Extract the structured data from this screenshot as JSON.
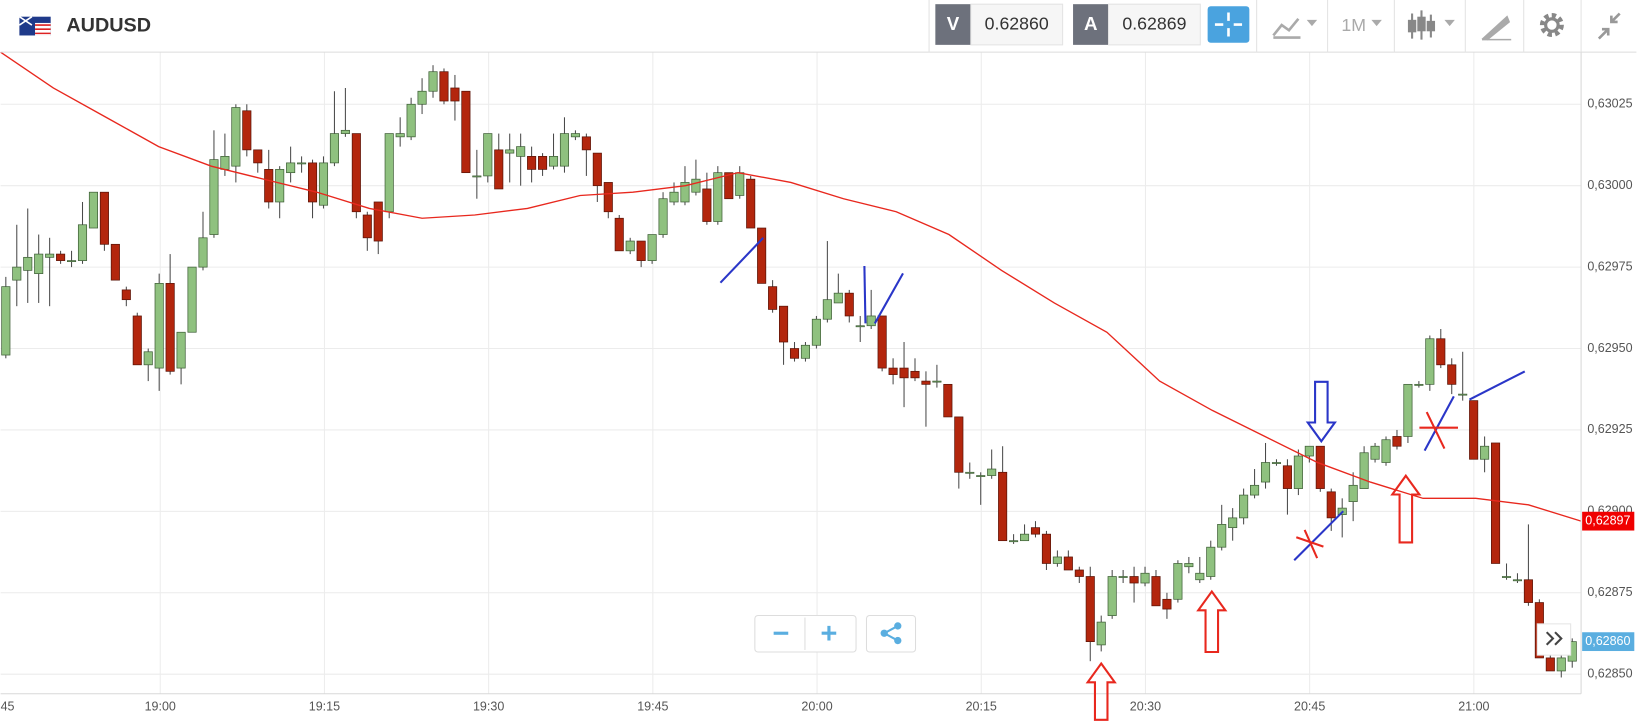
{
  "header": {
    "symbol": "AUDUSD",
    "bid_label": "V",
    "bid": "0.62860",
    "ask_label": "A",
    "ask": "0.62869",
    "timeframe": "1M"
  },
  "chart_data": {
    "type": "candlestick",
    "up_color": "#8fc17f",
    "down_color": "#b3260d",
    "grid": true,
    "ylim": [
      0.62844,
      0.63041
    ],
    "yticks": [
      {
        "value": 0.6285,
        "label": "0,62850"
      },
      {
        "value": 0.62875,
        "label": "0,62875"
      },
      {
        "value": 0.629,
        "label": "0,62900"
      },
      {
        "value": 0.62925,
        "label": "0,62925"
      },
      {
        "value": 0.6295,
        "label": "0,62950"
      },
      {
        "value": 0.62975,
        "label": "0,62975"
      },
      {
        "value": 0.63,
        "label": "0,63000"
      },
      {
        "value": 0.63025,
        "label": "0,63025"
      }
    ],
    "xticks": [
      "45",
      "19:00",
      "19:15",
      "19:30",
      "19:45",
      "20:00",
      "20:15",
      "20:30",
      "20:45",
      "21:00"
    ],
    "open": [
      0.62948,
      0.62971,
      0.62974,
      0.62973,
      0.62978,
      0.62979,
      0.62977,
      0.62977,
      0.62987,
      0.62998,
      0.62982,
      0.62968,
      0.6296,
      0.62945,
      0.62944,
      0.6297,
      0.62944,
      0.62955,
      0.62975,
      0.62985,
      0.63005,
      0.63006,
      0.63023,
      0.63011,
      0.63005,
      0.62995,
      0.63004,
      0.63007,
      0.63007,
      0.62994,
      0.63007,
      0.63016,
      0.63016,
      0.62991,
      0.62995,
      0.62992,
      0.63015,
      0.63015,
      0.63025,
      0.63029,
      0.63035,
      0.6303,
      0.63029,
      0.63003,
      0.63003,
      0.63011,
      0.6301,
      0.63009,
      0.63009,
      0.63009,
      0.63006,
      0.63006,
      0.63015,
      0.63015,
      0.6301,
      0.63001,
      0.6299,
      0.6298,
      0.62983,
      0.62977,
      0.62985,
      0.62995,
      0.62995,
      0.62998,
      0.62999,
      0.62989,
      0.63004,
      0.62997,
      0.63002,
      0.62987,
      0.62969,
      0.62963,
      0.6295,
      0.62947,
      0.62951,
      0.62959,
      0.62964,
      0.62967,
      0.62957,
      0.62957,
      0.6296,
      0.62944,
      0.62944,
      0.62943,
      0.6294,
      0.6294,
      0.62939,
      0.62929,
      0.62912,
      0.62911,
      0.62911,
      0.62912,
      0.62891,
      0.62891,
      0.62895,
      0.62893,
      0.62884,
      0.62886,
      0.62882,
      0.6288,
      0.62859,
      0.62868,
      0.6288,
      0.6288,
      0.62878,
      0.6288,
      0.62873,
      0.62873,
      0.62883,
      0.62879,
      0.6288,
      0.62889,
      0.62895,
      0.62898,
      0.62905,
      0.62909,
      0.62915,
      0.62914,
      0.62907,
      0.62917,
      0.6292,
      0.62906,
      0.62899,
      0.62903,
      0.62907,
      0.62916,
      0.62915,
      0.62923,
      0.62923,
      0.62939,
      0.62939,
      0.62953,
      0.62945,
      0.62936,
      0.62934,
      0.62916,
      0.62921,
      0.6288,
      0.62879,
      0.62879,
      0.62872,
      0.62855,
      0.62851,
      0.62854
    ],
    "high": [
      0.62972,
      0.62988,
      0.62993,
      0.62985,
      0.62984,
      0.6298,
      0.6298,
      0.62995,
      0.62998,
      0.62998,
      0.62982,
      0.62969,
      0.62961,
      0.6295,
      0.62973,
      0.62979,
      0.62955,
      0.62975,
      0.62992,
      0.63017,
      0.63016,
      0.63025,
      0.63025,
      0.63011,
      0.63011,
      0.63006,
      0.63012,
      0.63009,
      0.63008,
      0.63009,
      0.63029,
      0.6303,
      0.63016,
      0.62992,
      0.62995,
      0.63016,
      0.63021,
      0.63027,
      0.63033,
      0.63037,
      0.63036,
      0.63034,
      0.63029,
      0.63011,
      0.63016,
      0.63016,
      0.63016,
      0.63016,
      0.63012,
      0.6301,
      0.63016,
      0.63021,
      0.63017,
      0.63016,
      0.6301,
      0.63001,
      0.62991,
      0.62984,
      0.62983,
      0.62985,
      0.62998,
      0.63001,
      0.63006,
      0.63008,
      0.63004,
      0.63006,
      0.63004,
      0.63006,
      0.63003,
      0.62987,
      0.62971,
      0.62963,
      0.62952,
      0.62952,
      0.6296,
      0.62983,
      0.62973,
      0.62968,
      0.6296,
      0.62968,
      0.6296,
      0.62947,
      0.62952,
      0.62947,
      0.62943,
      0.62945,
      0.62939,
      0.62929,
      0.62915,
      0.62912,
      0.62919,
      0.6292,
      0.62893,
      0.62896,
      0.62897,
      0.62894,
      0.62888,
      0.62888,
      0.62883,
      0.62883,
      0.62868,
      0.62882,
      0.62882,
      0.62883,
      0.62883,
      0.62882,
      0.62875,
      0.62885,
      0.62886,
      0.62886,
      0.62891,
      0.62902,
      0.62901,
      0.62907,
      0.62913,
      0.62921,
      0.62916,
      0.62916,
      0.62919,
      0.6292,
      0.6292,
      0.62907,
      0.62904,
      0.62912,
      0.6292,
      0.62921,
      0.62923,
      0.62925,
      0.62939,
      0.6294,
      0.62954,
      0.62956,
      0.62947,
      0.62949,
      0.62934,
      0.62923,
      0.62921,
      0.62884,
      0.62881,
      0.62896,
      0.62873,
      0.62857,
      0.62856,
      0.62861
    ],
    "low": [
      0.62947,
      0.62963,
      0.62964,
      0.62964,
      0.62963,
      0.62976,
      0.62975,
      0.62976,
      0.62987,
      0.6298,
      0.62971,
      0.62963,
      0.62945,
      0.6294,
      0.62937,
      0.62942,
      0.62939,
      0.62955,
      0.62974,
      0.62984,
      0.63003,
      0.63001,
      0.63009,
      0.63004,
      0.62993,
      0.6299,
      0.63001,
      0.63004,
      0.6299,
      0.62993,
      0.63006,
      0.63015,
      0.6299,
      0.6298,
      0.62979,
      0.6299,
      0.63012,
      0.63014,
      0.63022,
      0.63027,
      0.63025,
      0.6302,
      0.63004,
      0.62996,
      0.63001,
      0.62999,
      0.63001,
      0.63,
      0.63001,
      0.63003,
      0.63005,
      0.63004,
      0.63014,
      0.63003,
      0.62995,
      0.6299,
      0.6298,
      0.62979,
      0.62975,
      0.62976,
      0.62984,
      0.62994,
      0.62994,
      0.62997,
      0.62988,
      0.62988,
      0.62996,
      0.62996,
      0.62987,
      0.6297,
      0.62961,
      0.62945,
      0.62946,
      0.62946,
      0.6295,
      0.62958,
      0.62964,
      0.62958,
      0.62952,
      0.62956,
      0.62943,
      0.62939,
      0.62932,
      0.6294,
      0.62926,
      0.62938,
      0.62929,
      0.62907,
      0.6291,
      0.62902,
      0.6291,
      0.62891,
      0.6289,
      0.62891,
      0.62892,
      0.62882,
      0.62883,
      0.62882,
      0.62878,
      0.62854,
      0.62857,
      0.62867,
      0.62878,
      0.62872,
      0.62877,
      0.62872,
      0.62867,
      0.62872,
      0.62881,
      0.62878,
      0.62879,
      0.62888,
      0.62891,
      0.62896,
      0.62904,
      0.62907,
      0.62914,
      0.62899,
      0.62905,
      0.62915,
      0.62906,
      0.62894,
      0.62892,
      0.62897,
      0.62907,
      0.62915,
      0.62914,
      0.62919,
      0.62921,
      0.62938,
      0.62937,
      0.62944,
      0.62936,
      0.62934,
      0.62916,
      0.62912,
      0.62884,
      0.62879,
      0.62878,
      0.62871,
      0.62855,
      0.62851,
      0.62849,
      0.62852
    ],
    "close": [
      0.62969,
      0.62975,
      0.62978,
      0.62979,
      0.62979,
      0.62977,
      0.62977,
      0.62988,
      0.62998,
      0.62982,
      0.62971,
      0.62965,
      0.62945,
      0.62949,
      0.6297,
      0.62943,
      0.62955,
      0.62975,
      0.62984,
      0.63008,
      0.63009,
      0.63024,
      0.63011,
      0.63007,
      0.62995,
      0.63005,
      0.63007,
      0.63007,
      0.62995,
      0.63007,
      0.63016,
      0.63017,
      0.62992,
      0.62984,
      0.62983,
      0.63016,
      0.63016,
      0.63025,
      0.63029,
      0.63035,
      0.63026,
      0.63026,
      0.63004,
      0.63003,
      0.63016,
      0.62999,
      0.63011,
      0.63012,
      0.63005,
      0.63005,
      0.63009,
      0.63016,
      0.63016,
      0.63011,
      0.63,
      0.62992,
      0.6298,
      0.62983,
      0.62977,
      0.62985,
      0.62996,
      0.62998,
      0.63001,
      0.63002,
      0.62989,
      0.63004,
      0.62996,
      0.63004,
      0.62987,
      0.6297,
      0.62962,
      0.62952,
      0.62947,
      0.62951,
      0.62959,
      0.62965,
      0.62967,
      0.6296,
      0.62957,
      0.6296,
      0.62944,
      0.62942,
      0.62941,
      0.62941,
      0.62939,
      0.6294,
      0.62929,
      0.62912,
      0.62912,
      0.62911,
      0.62913,
      0.62891,
      0.62891,
      0.62893,
      0.62893,
      0.62884,
      0.62886,
      0.62882,
      0.6288,
      0.6286,
      0.62866,
      0.6288,
      0.6288,
      0.62878,
      0.62881,
      0.62871,
      0.6287,
      0.62884,
      0.62884,
      0.62881,
      0.62889,
      0.62896,
      0.62898,
      0.62905,
      0.62908,
      0.62915,
      0.62915,
      0.62907,
      0.62917,
      0.6292,
      0.62907,
      0.62898,
      0.62901,
      0.62908,
      0.62918,
      0.6292,
      0.62922,
      0.6292,
      0.62939,
      0.62939,
      0.62953,
      0.62945,
      0.62939,
      0.62936,
      0.62916,
      0.6292,
      0.62884,
      0.6288,
      0.62879,
      0.62872,
      0.62855,
      0.62851,
      0.62855,
      0.6286
    ],
    "ma": {
      "color": "#e8281e",
      "values": [
        0.63041,
        0.6303,
        0.63021,
        0.63012,
        0.63006,
        0.63002,
        0.62998,
        0.62993,
        0.6299,
        0.62991,
        0.62993,
        0.62997,
        0.62998,
        0.63,
        0.63004,
        0.63001,
        0.62996,
        0.62992,
        0.62985,
        0.62974,
        0.62964,
        0.62955,
        0.6294,
        0.62931,
        0.62923,
        0.62915,
        0.62909,
        0.62904,
        0.62904,
        0.62902,
        0.62897
      ]
    },
    "price_tags": [
      {
        "value": 0.62897,
        "label": "0,62897",
        "color": "#f00000"
      },
      {
        "value": 0.6286,
        "label": "0,62860",
        "color": "#5aaee0"
      }
    ]
  }
}
